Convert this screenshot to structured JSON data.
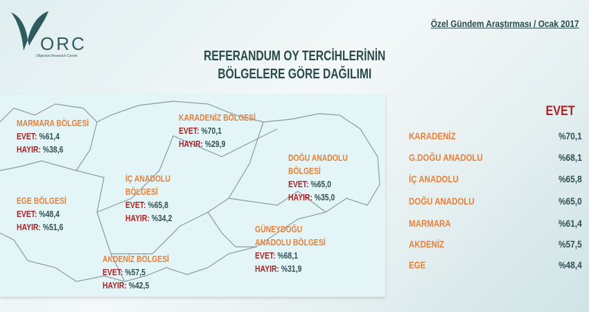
{
  "logo": {
    "text": "ORC",
    "subtitle": "Objective Research Center"
  },
  "header": {
    "survey": "Özel Gündem Araştırması / Ocak 2017",
    "title_line1": "REFERANDUM OY TERCİHLERİNİN",
    "title_line2": "BÖLGELERE GÖRE DAĞILIMI"
  },
  "labels": {
    "evet": "EVET:",
    "hayir": "HAYIR:"
  },
  "regions": [
    {
      "name": "MARMARA BÖLGESİ",
      "evet": "%61,4",
      "hayir": "%38,6"
    },
    {
      "name": "KARADENİZ BÖLGESİ",
      "evet": "%70,1",
      "hayir": "%29,9"
    },
    {
      "name": "DOĞU ANADOLU BÖLGESİ",
      "evet": "%65,0",
      "hayir": "%35,0"
    },
    {
      "name": "İÇ ANADOLU BÖLGESİ",
      "evet": "%65,8",
      "hayir": "%34,2"
    },
    {
      "name": "EGE BÖLGESİ",
      "evet": "%48,4",
      "hayir": "%51,6"
    },
    {
      "name": "GÜNEYDOĞU ANADOLU BÖLGESİ",
      "evet": "%68,1",
      "hayir": "%31,9"
    },
    {
      "name": "AKDENİZ BÖLGESİ",
      "evet": "%57,5",
      "hayir": "%42,5"
    }
  ],
  "region_name_lines": {
    "doguanadolu": [
      "DOĞU ANADOLU",
      "BÖLGESİ"
    ],
    "icanadolu": [
      "İÇ ANADOLU",
      "BÖLGESİ"
    ],
    "guneydogu": [
      "GÜNEYDOĞU",
      "ANADOLU BÖLGESİ"
    ]
  },
  "ranking": {
    "header": "EVET",
    "rows": [
      {
        "name": "KARADENİZ",
        "value": "%70,1"
      },
      {
        "name": "G.DOĞU ANADOLU",
        "value": "%68,1"
      },
      {
        "name": "İÇ ANADOLU",
        "value": "%65,8"
      },
      {
        "name": "DOĞU ANADOLU",
        "value": "%65,0"
      },
      {
        "name": "MARMARA",
        "value": "%61,4"
      },
      {
        "name": "AKDENİZ",
        "value": "%57,5"
      },
      {
        "name": "EGE",
        "value": "%48,4"
      }
    ]
  },
  "colors": {
    "region_name": "#e8803a",
    "label": "#b01f24",
    "value": "#2f4f52",
    "title": "#2a4a4e",
    "map_bg": "#e4f5f7"
  }
}
